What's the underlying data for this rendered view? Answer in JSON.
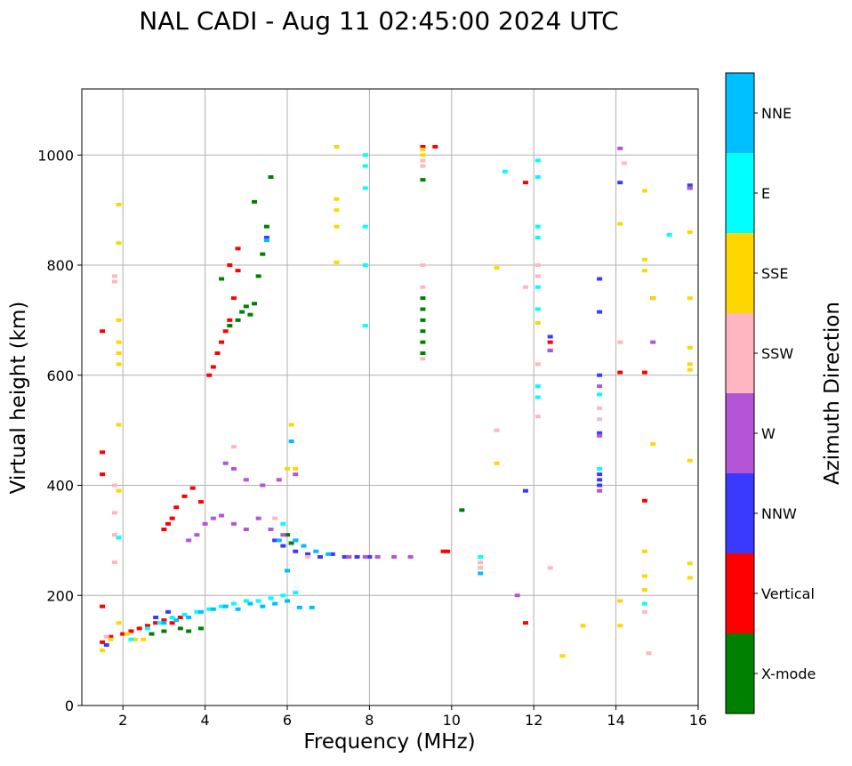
{
  "chart_data": {
    "type": "scatter",
    "title": "NAL CADI - Aug 11 02:45:00 2024 UTC",
    "xlabel": "Frequency (MHz)",
    "ylabel": "Virtual height (km)",
    "xlim": [
      1,
      16
    ],
    "ylim": [
      0,
      1120
    ],
    "xticks": [
      2,
      4,
      6,
      8,
      10,
      12,
      14,
      16
    ],
    "yticks": [
      0,
      200,
      400,
      600,
      800,
      1000
    ],
    "grid": true,
    "colorbar": {
      "label": "Azimuth Direction",
      "categories": [
        {
          "name": "X-mode",
          "color": "#008000"
        },
        {
          "name": "Vertical",
          "color": "#ff0000"
        },
        {
          "name": "NNW",
          "color": "#3a3aff"
        },
        {
          "name": "W",
          "color": "#b455d6"
        },
        {
          "name": "SSW",
          "color": "#ffb6c1"
        },
        {
          "name": "SSE",
          "color": "#ffd700"
        },
        {
          "name": "E",
          "color": "#00ffff"
        },
        {
          "name": "NNE",
          "color": "#00bfff"
        }
      ]
    },
    "series": [
      {
        "name": "X-mode",
        "points": [
          [
            2.7,
            130
          ],
          [
            3.0,
            135
          ],
          [
            3.4,
            140
          ],
          [
            3.6,
            135
          ],
          [
            3.9,
            140
          ],
          [
            4.4,
            775
          ],
          [
            4.6,
            690
          ],
          [
            4.8,
            700
          ],
          [
            4.9,
            715
          ],
          [
            5.0,
            725
          ],
          [
            5.1,
            710
          ],
          [
            5.2,
            730
          ],
          [
            5.3,
            780
          ],
          [
            5.4,
            820
          ],
          [
            5.5,
            870
          ],
          [
            5.6,
            960
          ],
          [
            5.2,
            915
          ],
          [
            6.0,
            310
          ],
          [
            6.1,
            295
          ],
          [
            9.3,
            640
          ],
          [
            9.3,
            660
          ],
          [
            9.3,
            680
          ],
          [
            9.3,
            700
          ],
          [
            9.3,
            720
          ],
          [
            9.3,
            740
          ],
          [
            9.3,
            955
          ],
          [
            10.25,
            355
          ]
        ]
      },
      {
        "name": "Vertical",
        "points": [
          [
            1.5,
            115
          ],
          [
            1.7,
            125
          ],
          [
            2.0,
            130
          ],
          [
            2.2,
            135
          ],
          [
            2.4,
            140
          ],
          [
            2.6,
            145
          ],
          [
            2.8,
            150
          ],
          [
            3.0,
            155
          ],
          [
            3.2,
            150
          ],
          [
            3.4,
            160
          ],
          [
            1.5,
            180
          ],
          [
            1.5,
            460
          ],
          [
            1.5,
            420
          ],
          [
            1.5,
            680
          ],
          [
            3.0,
            320
          ],
          [
            3.1,
            330
          ],
          [
            3.2,
            340
          ],
          [
            3.3,
            360
          ],
          [
            3.5,
            380
          ],
          [
            3.7,
            395
          ],
          [
            3.9,
            370
          ],
          [
            4.1,
            600
          ],
          [
            4.2,
            615
          ],
          [
            4.3,
            640
          ],
          [
            4.4,
            660
          ],
          [
            4.5,
            680
          ],
          [
            4.6,
            700
          ],
          [
            4.7,
            740
          ],
          [
            4.8,
            790
          ],
          [
            4.6,
            800
          ],
          [
            4.8,
            830
          ],
          [
            9.3,
            1015
          ],
          [
            9.6,
            1015
          ],
          [
            9.8,
            280
          ],
          [
            9.9,
            280
          ],
          [
            11.8,
            950
          ],
          [
            11.8,
            150
          ],
          [
            12.4,
            645
          ],
          [
            12.4,
            660
          ],
          [
            14.1,
            605
          ],
          [
            14.7,
            605
          ],
          [
            14.7,
            372
          ]
        ]
      },
      {
        "name": "NNW",
        "points": [
          [
            1.6,
            110
          ],
          [
            2.8,
            160
          ],
          [
            3.1,
            170
          ],
          [
            5.7,
            300
          ],
          [
            5.9,
            290
          ],
          [
            6.2,
            280
          ],
          [
            6.5,
            275
          ],
          [
            6.8,
            270
          ],
          [
            7.1,
            275
          ],
          [
            7.4,
            270
          ],
          [
            7.7,
            270
          ],
          [
            8.0,
            270
          ],
          [
            5.5,
            850
          ],
          [
            11.8,
            390
          ],
          [
            12.4,
            670
          ],
          [
            13.6,
            715
          ],
          [
            13.6,
            775
          ],
          [
            13.6,
            600
          ],
          [
            13.6,
            495
          ],
          [
            13.6,
            420
          ],
          [
            13.6,
            410
          ],
          [
            13.6,
            400
          ],
          [
            14.1,
            950
          ],
          [
            14.9,
            740
          ],
          [
            15.8,
            945
          ],
          [
            15.8,
            940
          ]
        ]
      },
      {
        "name": "W",
        "points": [
          [
            3.6,
            300
          ],
          [
            3.8,
            310
          ],
          [
            4.0,
            330
          ],
          [
            4.2,
            340
          ],
          [
            4.4,
            345
          ],
          [
            4.7,
            330
          ],
          [
            5.0,
            320
          ],
          [
            5.3,
            340
          ],
          [
            5.6,
            320
          ],
          [
            5.9,
            310
          ],
          [
            6.2,
            300
          ],
          [
            7.5,
            270
          ],
          [
            7.9,
            270
          ],
          [
            8.2,
            270
          ],
          [
            8.6,
            270
          ],
          [
            9.0,
            270
          ],
          [
            4.5,
            440
          ],
          [
            4.7,
            430
          ],
          [
            5.0,
            410
          ],
          [
            5.4,
            400
          ],
          [
            5.8,
            410
          ],
          [
            6.2,
            420
          ],
          [
            11.6,
            200
          ],
          [
            12.4,
            645
          ],
          [
            13.6,
            580
          ],
          [
            13.6,
            490
          ],
          [
            13.6,
            390
          ],
          [
            14.1,
            1012
          ],
          [
            14.9,
            660
          ],
          [
            15.8,
            940
          ]
        ]
      },
      {
        "name": "SSW",
        "points": [
          [
            1.6,
            125
          ],
          [
            1.8,
            260
          ],
          [
            1.8,
            310
          ],
          [
            1.8,
            350
          ],
          [
            1.8,
            400
          ],
          [
            1.8,
            770
          ],
          [
            1.8,
            780
          ],
          [
            4.7,
            470
          ],
          [
            5.7,
            340
          ],
          [
            6.5,
            270
          ],
          [
            9.3,
            630
          ],
          [
            9.3,
            760
          ],
          [
            9.3,
            800
          ],
          [
            9.3,
            980
          ],
          [
            9.3,
            990
          ],
          [
            10.7,
            260
          ],
          [
            10.7,
            250
          ],
          [
            11.1,
            500
          ],
          [
            11.8,
            760
          ],
          [
            12.1,
            800
          ],
          [
            12.1,
            780
          ],
          [
            12.1,
            620
          ],
          [
            12.1,
            525
          ],
          [
            12.4,
            250
          ],
          [
            13.6,
            540
          ],
          [
            13.6,
            520
          ],
          [
            14.1,
            660
          ],
          [
            14.2,
            985
          ],
          [
            14.7,
            170
          ],
          [
            14.8,
            95
          ]
        ]
      },
      {
        "name": "SSE",
        "points": [
          [
            1.5,
            100
          ],
          [
            1.7,
            120
          ],
          [
            1.9,
            150
          ],
          [
            2.1,
            130
          ],
          [
            2.3,
            120
          ],
          [
            2.5,
            120
          ],
          [
            1.9,
            700
          ],
          [
            1.9,
            660
          ],
          [
            1.9,
            640
          ],
          [
            1.9,
            620
          ],
          [
            1.9,
            510
          ],
          [
            1.9,
            390
          ],
          [
            1.9,
            840
          ],
          [
            1.9,
            910
          ],
          [
            6.1,
            510
          ],
          [
            6.2,
            430
          ],
          [
            6.0,
            430
          ],
          [
            7.2,
            920
          ],
          [
            7.2,
            900
          ],
          [
            7.2,
            870
          ],
          [
            7.2,
            1015
          ],
          [
            7.2,
            805
          ],
          [
            9.3,
            1000
          ],
          [
            9.3,
            1010
          ],
          [
            11.1,
            795
          ],
          [
            11.1,
            440
          ],
          [
            12.1,
            695
          ],
          [
            12.7,
            90
          ],
          [
            13.2,
            145
          ],
          [
            14.1,
            875
          ],
          [
            14.1,
            190
          ],
          [
            14.1,
            145
          ],
          [
            14.7,
            935
          ],
          [
            14.7,
            810
          ],
          [
            14.7,
            790
          ],
          [
            14.7,
            280
          ],
          [
            14.7,
            235
          ],
          [
            14.7,
            210
          ],
          [
            14.9,
            740
          ],
          [
            14.9,
            475
          ],
          [
            15.8,
            860
          ],
          [
            15.8,
            740
          ],
          [
            15.8,
            650
          ],
          [
            15.8,
            620
          ],
          [
            15.8,
            610
          ],
          [
            15.8,
            445
          ],
          [
            15.8,
            258
          ],
          [
            15.8,
            232
          ]
        ]
      },
      {
        "name": "E",
        "points": [
          [
            1.9,
            305
          ],
          [
            2.2,
            120
          ],
          [
            2.6,
            140
          ],
          [
            2.9,
            150
          ],
          [
            3.2,
            160
          ],
          [
            3.5,
            165
          ],
          [
            3.8,
            170
          ],
          [
            4.1,
            175
          ],
          [
            4.4,
            180
          ],
          [
            4.7,
            185
          ],
          [
            5.0,
            190
          ],
          [
            5.3,
            190
          ],
          [
            5.6,
            195
          ],
          [
            5.9,
            200
          ],
          [
            6.2,
            205
          ],
          [
            5.9,
            330
          ],
          [
            7.9,
            1000
          ],
          [
            7.9,
            980
          ],
          [
            7.9,
            940
          ],
          [
            7.9,
            870
          ],
          [
            7.9,
            800
          ],
          [
            7.9,
            690
          ],
          [
            10.7,
            270
          ],
          [
            11.3,
            970
          ],
          [
            12.1,
            990
          ],
          [
            12.1,
            960
          ],
          [
            12.1,
            870
          ],
          [
            12.1,
            850
          ],
          [
            12.1,
            760
          ],
          [
            12.1,
            720
          ],
          [
            12.1,
            580
          ],
          [
            12.1,
            560
          ],
          [
            13.6,
            565
          ],
          [
            13.6,
            430
          ],
          [
            14.7,
            185
          ],
          [
            15.3,
            855
          ]
        ]
      },
      {
        "name": "NNE",
        "points": [
          [
            3.0,
            150
          ],
          [
            3.3,
            155
          ],
          [
            3.6,
            160
          ],
          [
            3.9,
            170
          ],
          [
            4.2,
            175
          ],
          [
            4.5,
            180
          ],
          [
            4.8,
            175
          ],
          [
            5.1,
            185
          ],
          [
            5.4,
            180
          ],
          [
            5.7,
            185
          ],
          [
            6.0,
            190
          ],
          [
            6.3,
            178
          ],
          [
            6.6,
            178
          ],
          [
            5.8,
            300
          ],
          [
            6.1,
            480
          ],
          [
            6.0,
            245
          ],
          [
            6.2,
            300
          ],
          [
            6.4,
            290
          ],
          [
            6.7,
            280
          ],
          [
            7.0,
            275
          ],
          [
            5.5,
            845
          ],
          [
            10.7,
            240
          ]
        ]
      }
    ]
  }
}
